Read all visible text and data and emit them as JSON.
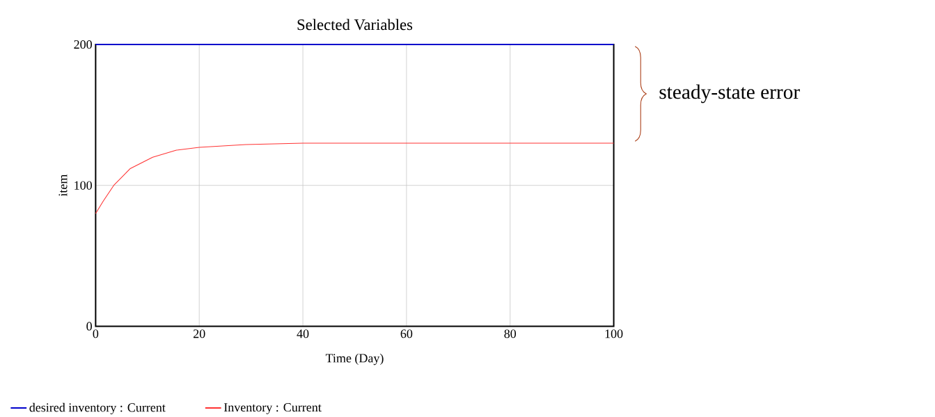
{
  "chart_data": {
    "type": "line",
    "title": "Selected Variables",
    "xlabel": "Time (Day)",
    "ylabel": "item",
    "series": [
      {
        "name": "desired inventory : Current",
        "color": "#0000cc",
        "x": [
          0,
          100
        ],
        "values": [
          200,
          200
        ]
      },
      {
        "name": "Inventory : Current",
        "color": "#ff3333",
        "x": [
          0,
          1.5,
          3.5,
          6.7,
          11,
          15.6,
          20,
          29,
          40,
          100
        ],
        "values": [
          80,
          89,
          100,
          112,
          120,
          125,
          127,
          129,
          130,
          130
        ]
      }
    ],
    "xlim": [
      0,
      100
    ],
    "ylim": [
      0,
      200
    ],
    "xticks": [
      0,
      20,
      40,
      60,
      80,
      100
    ],
    "yticks": [
      0,
      100,
      200
    ],
    "grid": true,
    "legend": "bottom",
    "marker": "none",
    "line_style": "solid",
    "annotations": [
      "steady-state error"
    ]
  }
}
